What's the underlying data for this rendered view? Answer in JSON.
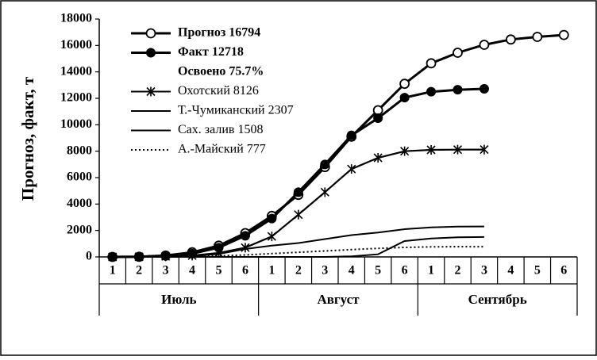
{
  "chart_data": {
    "type": "line",
    "ylabel": "Прогноз, факт, т",
    "ylim": [
      0,
      18000
    ],
    "yticks": [
      "0",
      "2000",
      "4000",
      "6000",
      "8000",
      "10000",
      "12000",
      "14000",
      "16000",
      "18000"
    ],
    "categories": [
      "1",
      "2",
      "3",
      "4",
      "5",
      "6",
      "1",
      "2",
      "3",
      "4",
      "5",
      "6",
      "1",
      "2",
      "3",
      "4",
      "5",
      "6"
    ],
    "months": [
      "Июль",
      "Август",
      "Сентябрь"
    ],
    "grid": false,
    "legend_position": "top-left",
    "series": [
      {
        "name": "Прогноз 16794",
        "style": "open-circle",
        "bold": true,
        "values": [
          0,
          10,
          100,
          350,
          850,
          1800,
          3100,
          4700,
          6800,
          9100,
          11100,
          13100,
          14650,
          15450,
          16050,
          16450,
          16650,
          16794
        ]
      },
      {
        "name": "Факт 12718",
        "style": "filled-circle",
        "bold": true,
        "values": [
          0,
          10,
          80,
          250,
          700,
          1600,
          2900,
          4900,
          7000,
          9200,
          10500,
          12050,
          12500,
          12650,
          12718,
          null,
          null,
          null
        ]
      },
      {
        "name": "Охотский 8126",
        "style": "asterisk",
        "bold": false,
        "values": [
          0,
          10,
          40,
          100,
          300,
          700,
          1550,
          3200,
          4900,
          6650,
          7500,
          8000,
          8100,
          8120,
          8126,
          null,
          null,
          null
        ]
      },
      {
        "name": "Т.-Чумиканский 2307",
        "style": "solid",
        "bold": false,
        "values": [
          0,
          0,
          20,
          50,
          220,
          600,
          850,
          1050,
          1350,
          1650,
          1850,
          2100,
          2230,
          2290,
          2307,
          null,
          null,
          null
        ]
      },
      {
        "name": "Сах. залив 1508",
        "style": "solid",
        "bold": false,
        "values": [
          0,
          0,
          0,
          0,
          0,
          0,
          0,
          0,
          0,
          50,
          200,
          1200,
          1400,
          1490,
          1508,
          null,
          null,
          null
        ]
      },
      {
        "name": "А.-Майский 777",
        "style": "dotted",
        "bold": false,
        "values": [
          0,
          0,
          10,
          30,
          80,
          150,
          250,
          350,
          450,
          550,
          650,
          720,
          760,
          775,
          777,
          null,
          null,
          null
        ]
      }
    ],
    "annotation": "Освоено 75.7%"
  }
}
